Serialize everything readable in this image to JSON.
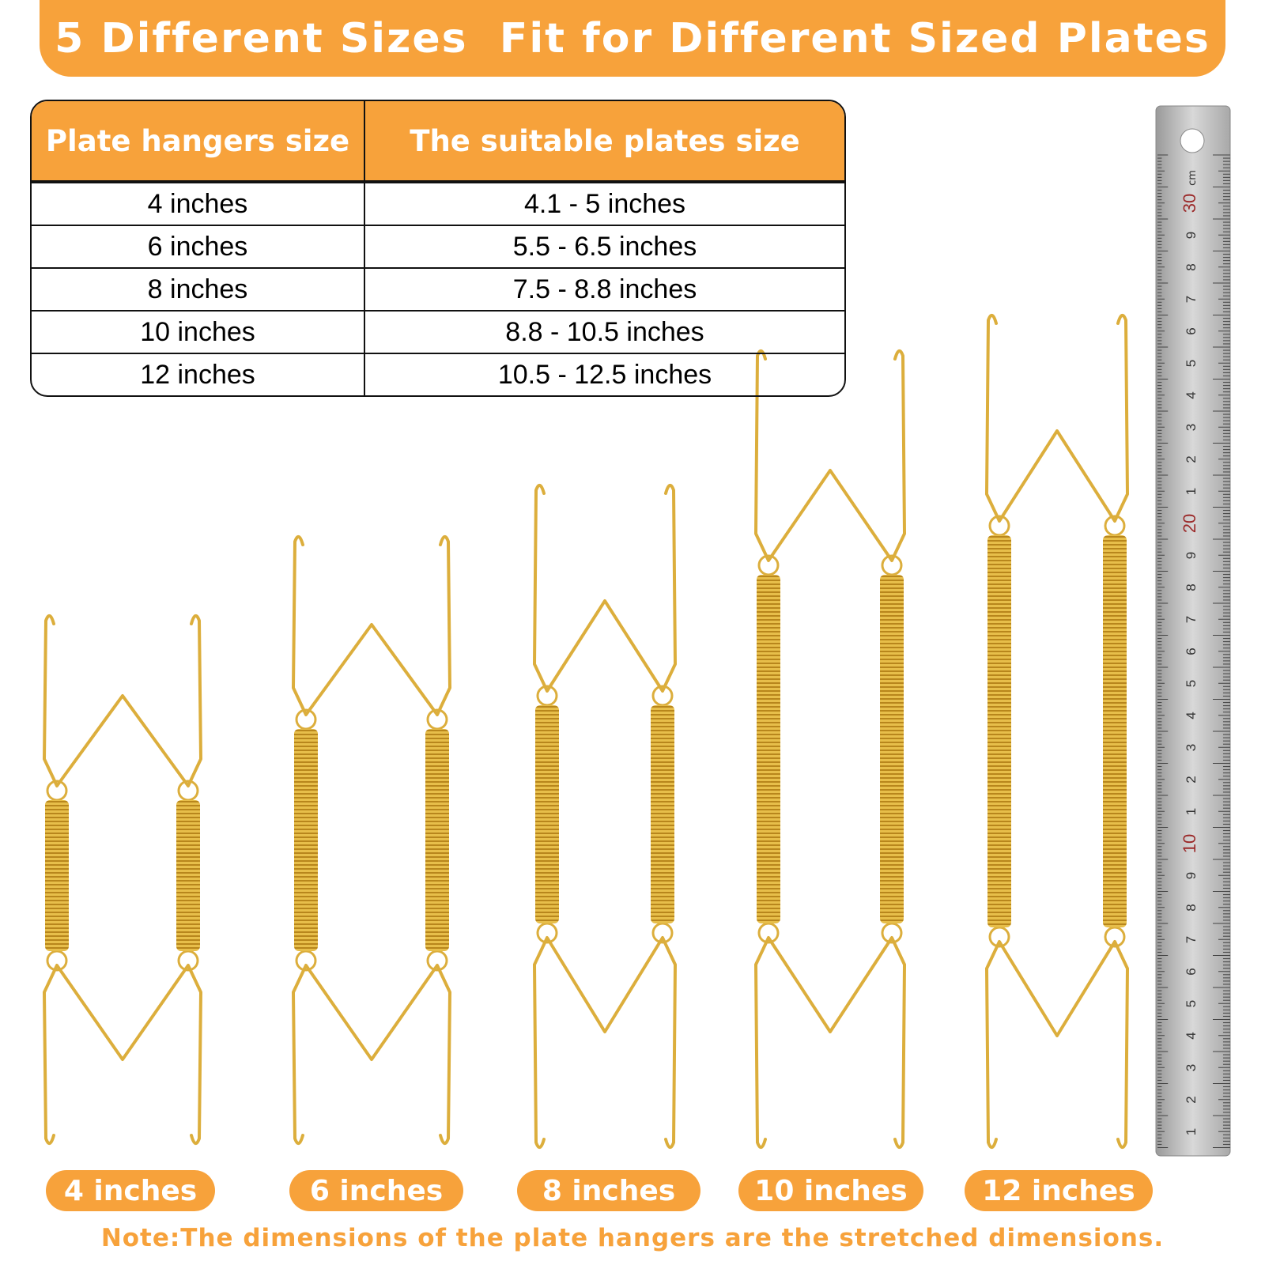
{
  "header": {
    "title": "5 Different Sizes  Fit for Different Sized Plates"
  },
  "table": {
    "headers": [
      "Plate hangers size",
      "The suitable plates size"
    ],
    "rows": [
      [
        "4 inches",
        "4.1 - 5 inches"
      ],
      [
        "6 inches",
        "5.5 - 6.5 inches"
      ],
      [
        "8 inches",
        "7.5 - 8.8 inches"
      ],
      [
        "10 inches",
        "8.8 - 10.5 inches"
      ],
      [
        "12 inches",
        "10.5 - 12.5 inches"
      ]
    ]
  },
  "labels": [
    "4 inches",
    "6 inches",
    "8 inches",
    "10 inches",
    "12 inches"
  ],
  "ruler": {
    "unit": "cm",
    "labels": [
      "30",
      "9",
      "8",
      "7",
      "6",
      "5",
      "4",
      "3",
      "2",
      "1",
      "20",
      "9",
      "8",
      "7",
      "6",
      "5",
      "4",
      "3",
      "2",
      "1",
      "10",
      "9",
      "8",
      "7",
      "6",
      "5",
      "4",
      "3",
      "2",
      "1"
    ]
  },
  "note": "Note:The dimensions of the plate hangers are the stretched dimensions."
}
